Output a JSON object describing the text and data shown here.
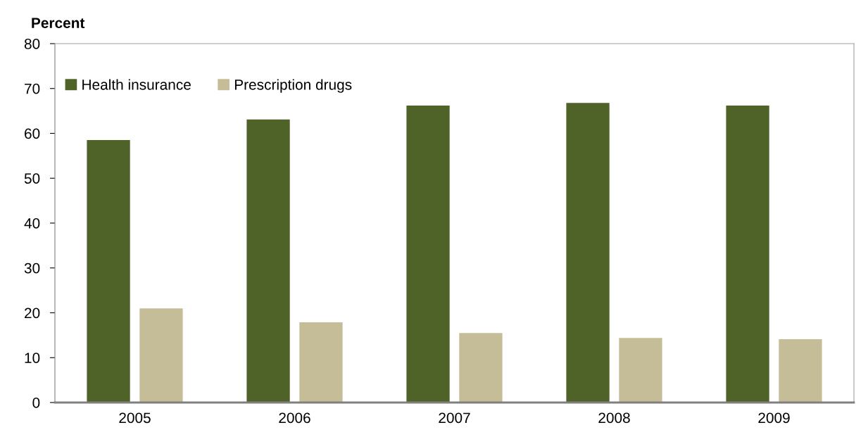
{
  "chart_data": {
    "type": "bar",
    "ylabel": "Percent",
    "categories": [
      "2005",
      "2006",
      "2007",
      "2008",
      "2009"
    ],
    "series": [
      {
        "name": "Health insurance",
        "color": "#4f6228",
        "values": [
          58.5,
          63.1,
          66.2,
          66.8,
          66.2
        ]
      },
      {
        "name": "Prescription drugs",
        "color": "#c4bd97",
        "values": [
          21.0,
          17.9,
          15.5,
          14.4,
          14.1
        ]
      }
    ],
    "ylim": [
      0,
      80
    ],
    "yticks": [
      0,
      10,
      20,
      30,
      40,
      50,
      60,
      70,
      80
    ],
    "grid": false,
    "legend": "top left"
  }
}
